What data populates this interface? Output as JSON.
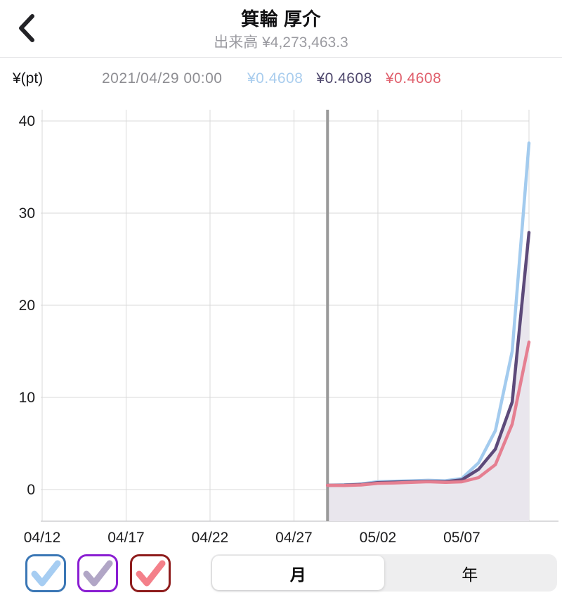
{
  "header": {
    "title": "箕輪 厚介",
    "subtitle": "出来高 ¥4,273,463.3",
    "back_icon": "chevron-left"
  },
  "info": {
    "unit_label": "¥(pt)",
    "timestamp": "2021/04/29 00:00",
    "values": [
      {
        "text": "¥0.4608",
        "color": "#a9cdee",
        "series": "blue"
      },
      {
        "text": "¥0.4608",
        "color": "#4f486d",
        "series": "purple"
      },
      {
        "text": "¥0.4608",
        "color": "#e0606d",
        "series": "pink"
      }
    ]
  },
  "chart_data": {
    "type": "line",
    "title": "",
    "xlabel": "",
    "ylabel": "¥(pt)",
    "y_ticks": [
      0,
      10,
      20,
      30,
      40
    ],
    "ylim": [
      -3.4,
      41.2
    ],
    "x_tick_labels": [
      "04/12",
      "04/17",
      "04/22",
      "04/27",
      "05/02",
      "05/07"
    ],
    "x_domain": [
      "04/12",
      "05/11"
    ],
    "marker_date": "04/29",
    "grid": true,
    "grid_color": "#d9d9d9",
    "axis_line_color": "#cfcfd2",
    "marker_color": "#9a9a9a",
    "area_fill_color": "#e9e6ed",
    "x": [
      "04/29",
      "04/30",
      "05/01",
      "05/02",
      "05/03",
      "05/04",
      "05/05",
      "05/06",
      "05/07",
      "05/08",
      "05/09",
      "05/10",
      "05/11"
    ],
    "series": [
      {
        "name": "blue",
        "color": "#a3cbee",
        "values": [
          0.46,
          0.5,
          0.6,
          0.85,
          0.9,
          0.95,
          1.0,
          0.95,
          1.2,
          2.9,
          6.4,
          15.0,
          37.6
        ]
      },
      {
        "name": "purple",
        "color": "#5d4a7a",
        "fill": true,
        "values": [
          0.46,
          0.48,
          0.55,
          0.75,
          0.8,
          0.85,
          0.9,
          0.85,
          1.05,
          2.2,
          4.4,
          9.5,
          27.9
        ]
      },
      {
        "name": "pink",
        "color": "#e57f91",
        "values": [
          0.46,
          0.44,
          0.5,
          0.68,
          0.72,
          0.78,
          0.85,
          0.78,
          0.84,
          1.3,
          2.7,
          7.1,
          16.0
        ]
      }
    ]
  },
  "controls": {
    "checkboxes": [
      {
        "series": "blue",
        "border": "#3b77b5",
        "check": "#a6cdf2",
        "checked": true
      },
      {
        "series": "purple",
        "border": "#8a1ed2",
        "check": "#b1a6c6",
        "checked": true
      },
      {
        "series": "pink",
        "border": "#8e1c1c",
        "check": "#f4808a",
        "checked": true
      }
    ],
    "segments": [
      {
        "label": "月",
        "name": "month",
        "selected": true
      },
      {
        "label": "年",
        "name": "year",
        "selected": false
      }
    ]
  }
}
